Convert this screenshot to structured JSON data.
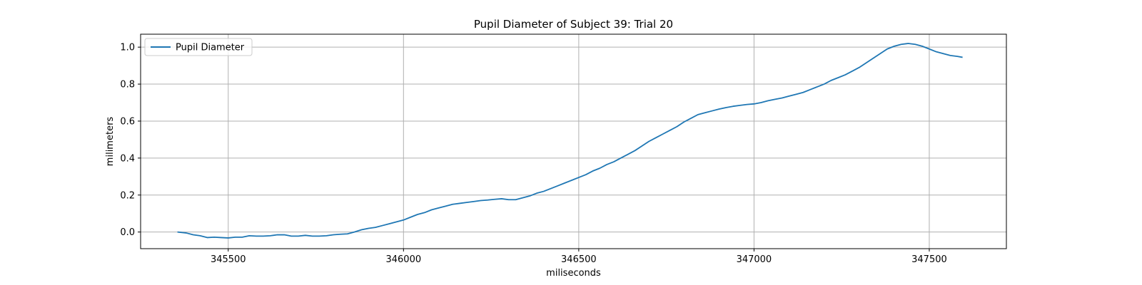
{
  "chart_data": {
    "type": "line",
    "title": "Pupil Diameter of Subject 39: Trial 20",
    "xlabel": "miliseconds",
    "ylabel": "milimeters",
    "xlim": [
      345250,
      347720
    ],
    "ylim": [
      -0.09,
      1.07
    ],
    "xticks": [
      345500,
      346000,
      346500,
      347000,
      347500
    ],
    "yticks": [
      0.0,
      0.2,
      0.4,
      0.6,
      0.8,
      1.0
    ],
    "xtick_labels": [
      "345500",
      "346000",
      "346500",
      "347000",
      "347500"
    ],
    "ytick_labels": [
      "0.0",
      "0.2",
      "0.4",
      "0.6",
      "0.8",
      "1.0"
    ],
    "grid": true,
    "legend_position": "upper-left",
    "series": [
      {
        "name": "Pupil Diameter",
        "color": "#1f77b4",
        "x": [
          345355,
          345380,
          345400,
          345420,
          345440,
          345460,
          345480,
          345500,
          345520,
          345540,
          345560,
          345580,
          345600,
          345620,
          345640,
          345660,
          345680,
          345700,
          345720,
          345740,
          345760,
          345780,
          345800,
          345820,
          345840,
          345860,
          345880,
          345900,
          345920,
          345940,
          345960,
          345980,
          346000,
          346020,
          346040,
          346060,
          346080,
          346100,
          346120,
          346140,
          346160,
          346180,
          346200,
          346220,
          346240,
          346260,
          346280,
          346300,
          346320,
          346340,
          346360,
          346380,
          346400,
          346420,
          346440,
          346460,
          346480,
          346500,
          346520,
          346540,
          346560,
          346580,
          346600,
          346620,
          346640,
          346660,
          346680,
          346700,
          346720,
          346740,
          346760,
          346780,
          346800,
          346820,
          346840,
          346860,
          346880,
          346900,
          346920,
          346940,
          346960,
          346980,
          347000,
          347020,
          347040,
          347060,
          347080,
          347100,
          347120,
          347140,
          347160,
          347180,
          347200,
          347220,
          347240,
          347260,
          347280,
          347300,
          347320,
          347340,
          347360,
          347380,
          347400,
          347420,
          347440,
          347460,
          347480,
          347500,
          347520,
          347540,
          347560,
          347580,
          347595
        ],
        "y": [
          0.0,
          -0.005,
          -0.015,
          -0.02,
          -0.03,
          -0.028,
          -0.03,
          -0.032,
          -0.028,
          -0.028,
          -0.02,
          -0.022,
          -0.022,
          -0.02,
          -0.015,
          -0.015,
          -0.022,
          -0.022,
          -0.018,
          -0.022,
          -0.022,
          -0.02,
          -0.015,
          -0.012,
          -0.01,
          0.0,
          0.012,
          0.02,
          0.025,
          0.035,
          0.045,
          0.055,
          0.065,
          0.08,
          0.095,
          0.105,
          0.12,
          0.13,
          0.14,
          0.15,
          0.155,
          0.16,
          0.165,
          0.17,
          0.173,
          0.177,
          0.18,
          0.175,
          0.175,
          0.185,
          0.195,
          0.21,
          0.22,
          0.235,
          0.25,
          0.265,
          0.28,
          0.295,
          0.31,
          0.33,
          0.345,
          0.365,
          0.38,
          0.4,
          0.42,
          0.44,
          0.465,
          0.49,
          0.51,
          0.53,
          0.55,
          0.57,
          0.595,
          0.615,
          0.635,
          0.645,
          0.655,
          0.665,
          0.673,
          0.68,
          0.685,
          0.69,
          0.693,
          0.7,
          0.71,
          0.718,
          0.725,
          0.735,
          0.745,
          0.755,
          0.77,
          0.785,
          0.8,
          0.82,
          0.835,
          0.85,
          0.87,
          0.89,
          0.915,
          0.94,
          0.965,
          0.99,
          1.005,
          1.015,
          1.02,
          1.015,
          1.005,
          0.99,
          0.975,
          0.965,
          0.955,
          0.95,
          0.945
        ]
      }
    ]
  }
}
